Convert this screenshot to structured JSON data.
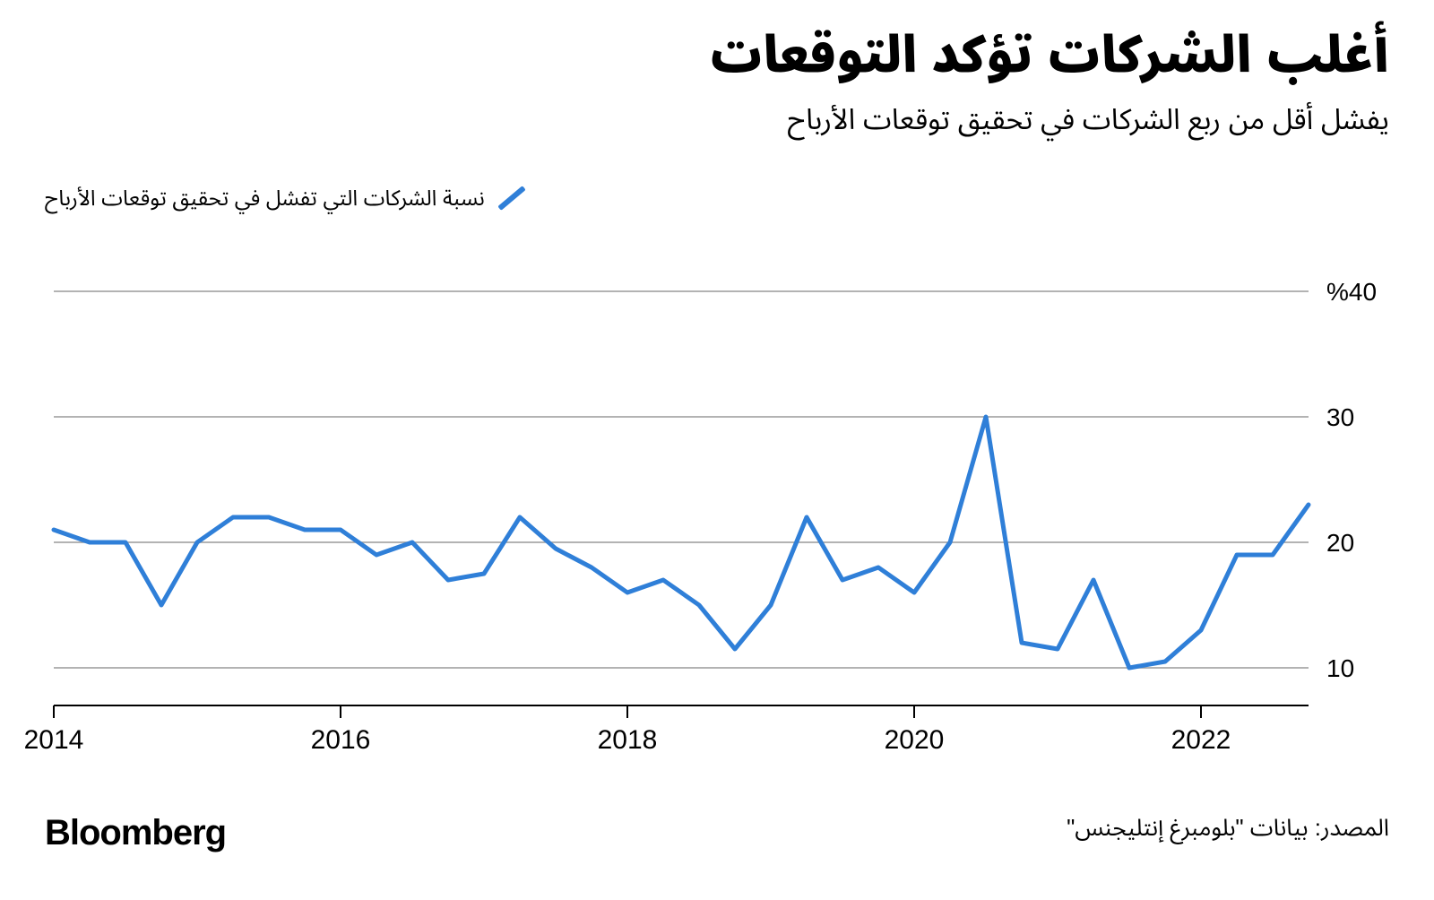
{
  "title": "أغلب الشركات تؤكد التوقعات",
  "subtitle": "يفشل أقل من ربع الشركات في تحقيق توقعات الأرباح",
  "legend": {
    "label": "نسبة الشركات التي تفشل في تحقيق توقعات الأرباح",
    "color": "#2f7fd8"
  },
  "brand": "Bloomberg",
  "source": "المصدر: بيانات \"بلومبرغ إنتليجنس\"",
  "chart": {
    "type": "line",
    "background_color": "#ffffff",
    "grid_color": "#9a9a9a",
    "axis_color": "#000000",
    "line_color": "#2f7fd8",
    "line_width": 5,
    "xlim": [
      2014.0,
      2022.75
    ],
    "ylim": [
      7,
      42
    ],
    "yticks": [
      10,
      20,
      30,
      40
    ],
    "ytick_labels": [
      "10",
      "20",
      "30",
      "%40"
    ],
    "xticks": [
      2014,
      2016,
      2018,
      2020,
      2022
    ],
    "xtick_labels": [
      "2014",
      "2016",
      "2018",
      "2020",
      "2022"
    ],
    "tick_fontsize": 28,
    "series": {
      "x": [
        2014.0,
        2014.25,
        2014.5,
        2014.75,
        2015.0,
        2015.25,
        2015.5,
        2015.75,
        2016.0,
        2016.25,
        2016.5,
        2016.75,
        2017.0,
        2017.25,
        2017.5,
        2017.75,
        2018.0,
        2018.25,
        2018.5,
        2018.75,
        2019.0,
        2019.25,
        2019.5,
        2019.75,
        2020.0,
        2020.25,
        2020.5,
        2020.75,
        2021.0,
        2021.25,
        2021.5,
        2021.75,
        2022.0,
        2022.25,
        2022.5,
        2022.75
      ],
      "y": [
        21.0,
        20.0,
        20.0,
        15.0,
        20.0,
        22.0,
        22.0,
        21.0,
        21.0,
        19.0,
        20.0,
        17.0,
        17.5,
        22.0,
        19.5,
        18.0,
        16.0,
        17.0,
        15.0,
        11.5,
        15.0,
        22.0,
        17.0,
        18.0,
        16.0,
        20.0,
        30.0,
        12.0,
        11.5,
        17.0,
        10.0,
        10.5,
        13.0,
        19.0,
        19.0,
        23.0
      ]
    }
  }
}
